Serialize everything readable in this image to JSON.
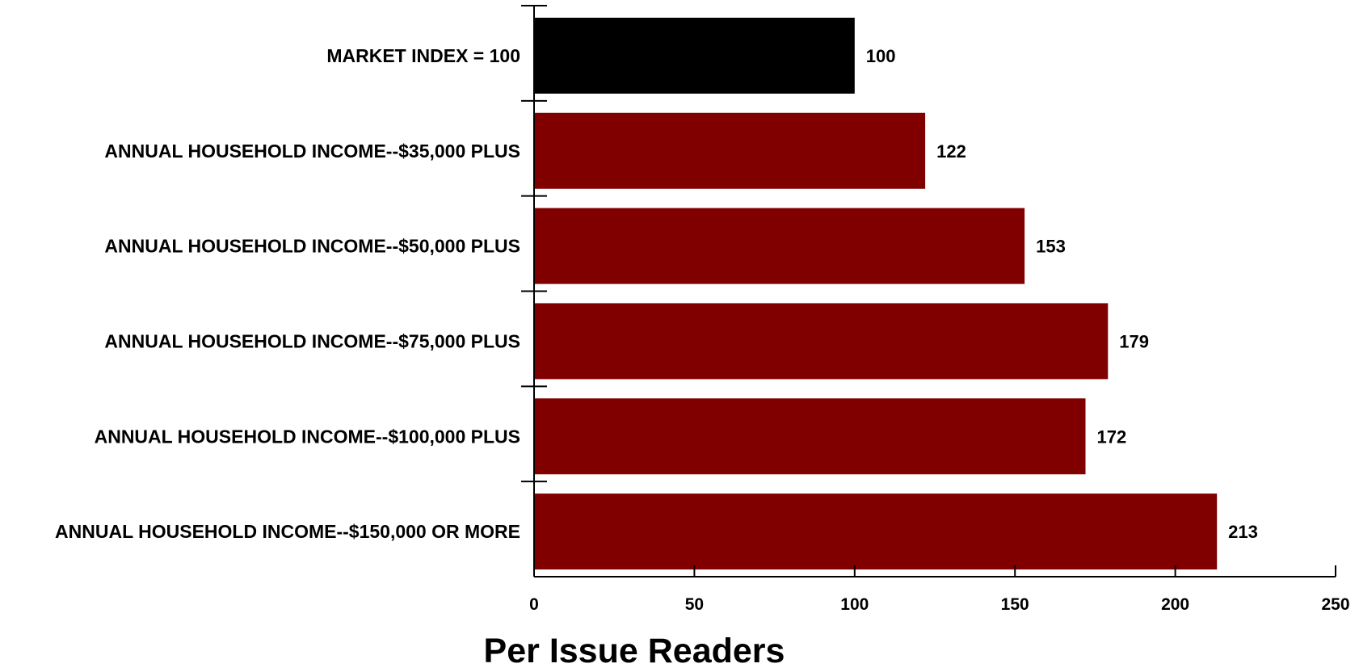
{
  "chart_data": {
    "type": "bar",
    "orientation": "horizontal",
    "categories": [
      "MARKET INDEX = 100",
      "ANNUAL HOUSEHOLD INCOME--$35,000 PLUS",
      "ANNUAL HOUSEHOLD INCOME--$50,000 PLUS",
      "ANNUAL HOUSEHOLD INCOME--$75,000 PLUS",
      "ANNUAL HOUSEHOLD INCOME--$100,000 PLUS",
      "ANNUAL HOUSEHOLD INCOME--$150,000 OR MORE"
    ],
    "values": [
      100,
      122,
      153,
      179,
      172,
      213
    ],
    "value_labels": [
      "100",
      "122",
      "153",
      "179",
      "172",
      "213"
    ],
    "bar_colors": [
      "#000000",
      "#800000",
      "#800000",
      "#800000",
      "#800000",
      "#800000"
    ],
    "title": "",
    "xlabel": "Per Issue Readers",
    "ylabel": "",
    "xlim": [
      0,
      250
    ],
    "x_ticks": [
      0,
      50,
      100,
      150,
      200,
      250
    ],
    "x_tick_labels": [
      "0",
      "50",
      "100",
      "150",
      "200",
      "250"
    ],
    "grid": false,
    "legend": "none"
  }
}
